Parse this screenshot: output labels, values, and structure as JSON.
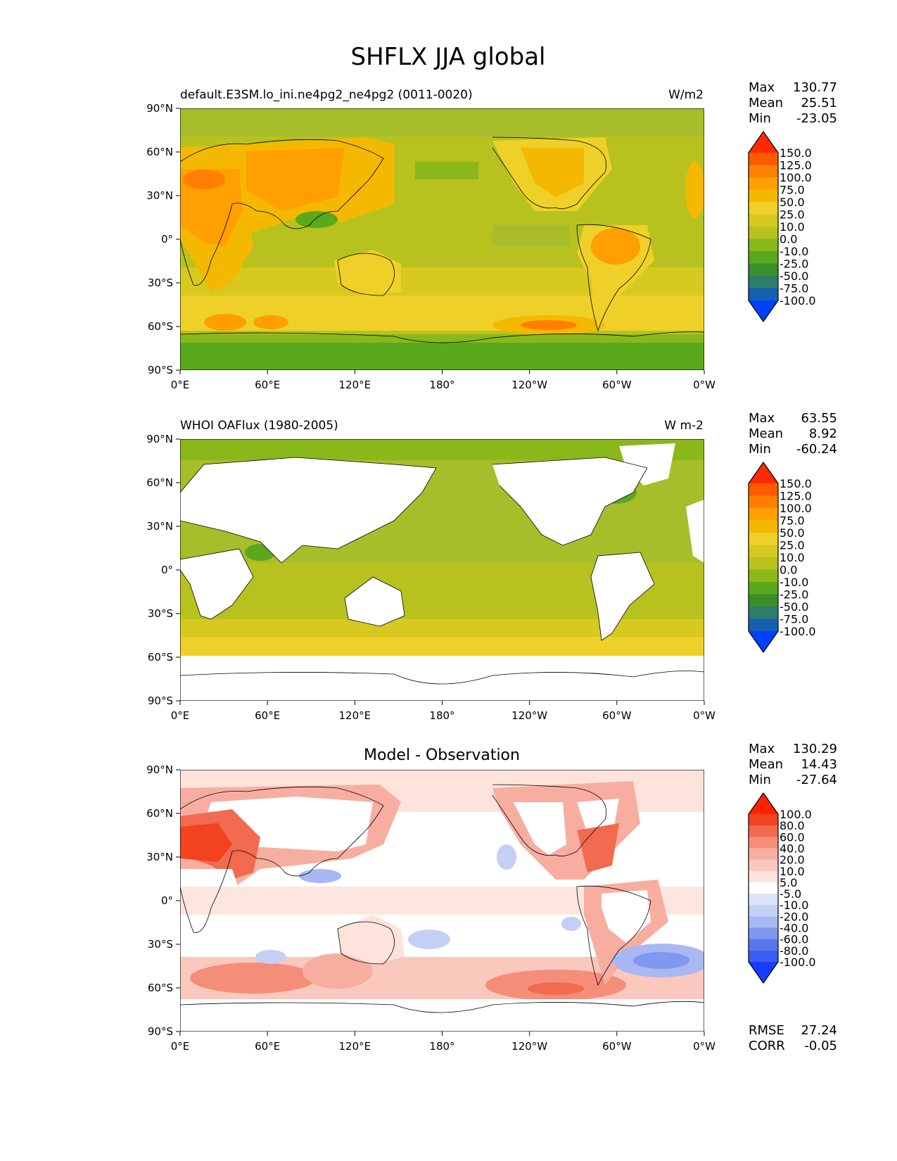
{
  "title": "SHFLX JJA global",
  "colors": {
    "ocean_green": "#a8bd2a",
    "land_none": "#ffffff",
    "coast": "#000000"
  },
  "chart_data": [
    {
      "type": "heatmap",
      "subtitle_left": "default.E3SM.lo_ini.ne4pg2_ne4pg2 (0011-0020)",
      "subtitle_right": "W/m2",
      "xticks": [
        "0°E",
        "60°E",
        "120°E",
        "180°",
        "120°W",
        "60°W",
        "0°W"
      ],
      "yticks": [
        "90°N",
        "60°N",
        "30°N",
        "0°",
        "30°S",
        "60°S",
        "90°S"
      ],
      "xlim": [
        0,
        360
      ],
      "ylim": [
        -90,
        90
      ],
      "stats": [
        {
          "label": "Max",
          "value": "130.77"
        },
        {
          "label": "Mean",
          "value": "25.51"
        },
        {
          "label": "Min",
          "value": "-23.05"
        }
      ],
      "colorbar": {
        "levels": [
          "150.0",
          "125.0",
          "100.0",
          "75.0",
          "50.0",
          "25.0",
          "10.0",
          "0.0",
          "-10.0",
          "-25.0",
          "-50.0",
          "-75.0",
          "-100.0"
        ],
        "colors": [
          "#ff2a00",
          "#ff5a00",
          "#ff7f00",
          "#ff9f00",
          "#f5b800",
          "#eed028",
          "#d7c91f",
          "#b8c21f",
          "#8ab81a",
          "#5aa81c",
          "#3a8f2a",
          "#2d7d6b",
          "#1560b0",
          "#0040ff"
        ]
      },
      "regions": [
        {
          "name": "land-north-africa-europe",
          "value": 75
        },
        {
          "name": "land-central-asia",
          "value": 62
        },
        {
          "name": "land-north-america-west",
          "value": 55
        },
        {
          "name": "land-amazon",
          "value": 70
        },
        {
          "name": "ocean-subtropical-south",
          "value": 30
        },
        {
          "name": "southern-ocean-high",
          "value": 80
        },
        {
          "name": "antarctica",
          "value": -5
        },
        {
          "name": "arctic",
          "value": 5
        }
      ]
    },
    {
      "type": "heatmap",
      "subtitle_left": "WHOI OAFlux (1980-2005)",
      "subtitle_right": "W m-2",
      "xticks": [
        "0°E",
        "60°E",
        "120°E",
        "180°",
        "120°W",
        "60°W",
        "0°W"
      ],
      "yticks": [
        "90°N",
        "60°N",
        "30°N",
        "0°",
        "30°S",
        "60°S",
        "90°S"
      ],
      "xlim": [
        0,
        360
      ],
      "ylim": [
        -90,
        90
      ],
      "stats": [
        {
          "label": "Max",
          "value": "63.55"
        },
        {
          "label": "Mean",
          "value": "8.92"
        },
        {
          "label": "Min",
          "value": "-60.24"
        }
      ],
      "colorbar": {
        "levels": [
          "150.0",
          "125.0",
          "100.0",
          "75.0",
          "50.0",
          "25.0",
          "10.0",
          "0.0",
          "-10.0",
          "-25.0",
          "-50.0",
          "-75.0",
          "-100.0"
        ],
        "colors": [
          "#ff2a00",
          "#ff5a00",
          "#ff7f00",
          "#ff9f00",
          "#f5b800",
          "#eed028",
          "#d7c91f",
          "#b8c21f",
          "#8ab81a",
          "#5aa81c",
          "#3a8f2a",
          "#2d7d6b",
          "#1560b0",
          "#0040ff"
        ]
      },
      "regions": [
        {
          "name": "ocean-tropical",
          "value": 5
        },
        {
          "name": "ocean-north-pacific",
          "value": -5
        },
        {
          "name": "southern-ocean",
          "value": 25
        },
        {
          "name": "gulf-stream",
          "value": -15
        }
      ]
    },
    {
      "type": "heatmap",
      "title": "Model - Observation",
      "xticks": [
        "0°E",
        "60°E",
        "120°E",
        "180°",
        "120°W",
        "60°W",
        "0°W"
      ],
      "yticks": [
        "90°N",
        "60°N",
        "30°N",
        "0°",
        "30°S",
        "60°S",
        "90°S"
      ],
      "xlim": [
        0,
        360
      ],
      "ylim": [
        -90,
        90
      ],
      "stats": [
        {
          "label": "Max",
          "value": "130.29"
        },
        {
          "label": "Mean",
          "value": "14.43"
        },
        {
          "label": "Min",
          "value": "-27.64"
        }
      ],
      "extra_stats": [
        {
          "label": "RMSE",
          "value": "27.24"
        },
        {
          "label": "CORR",
          "value": "-0.05"
        }
      ],
      "colorbar": {
        "levels": [
          "100.0",
          "80.0",
          "60.0",
          "40.0",
          "20.0",
          "10.0",
          "5.0",
          "-5.0",
          "-10.0",
          "-20.0",
          "-40.0",
          "-60.0",
          "-80.0",
          "-100.0"
        ],
        "colors": [
          "#ff2200",
          "#f2421f",
          "#f26a4f",
          "#f58e78",
          "#f7aea0",
          "#fac8bd",
          "#fde3dc",
          "#ffffff",
          "#dce4fa",
          "#c3cff5",
          "#a8b8f2",
          "#8098ef",
          "#5a78ec",
          "#3a5cf0",
          "#1a3cff"
        ]
      },
      "regions": [
        {
          "name": "europe-north-africa",
          "value": 90
        },
        {
          "name": "middle-east",
          "value": 70
        },
        {
          "name": "west-north-america",
          "value": 50
        },
        {
          "name": "southern-ocean-pacific",
          "value": 60
        },
        {
          "name": "southern-ocean-atlantic",
          "value": 40
        },
        {
          "name": "south-atlantic-low",
          "value": -15
        },
        {
          "name": "bay-of-bengal-low",
          "value": -12
        },
        {
          "name": "eastern-pacific",
          "value": 8
        }
      ]
    }
  ]
}
